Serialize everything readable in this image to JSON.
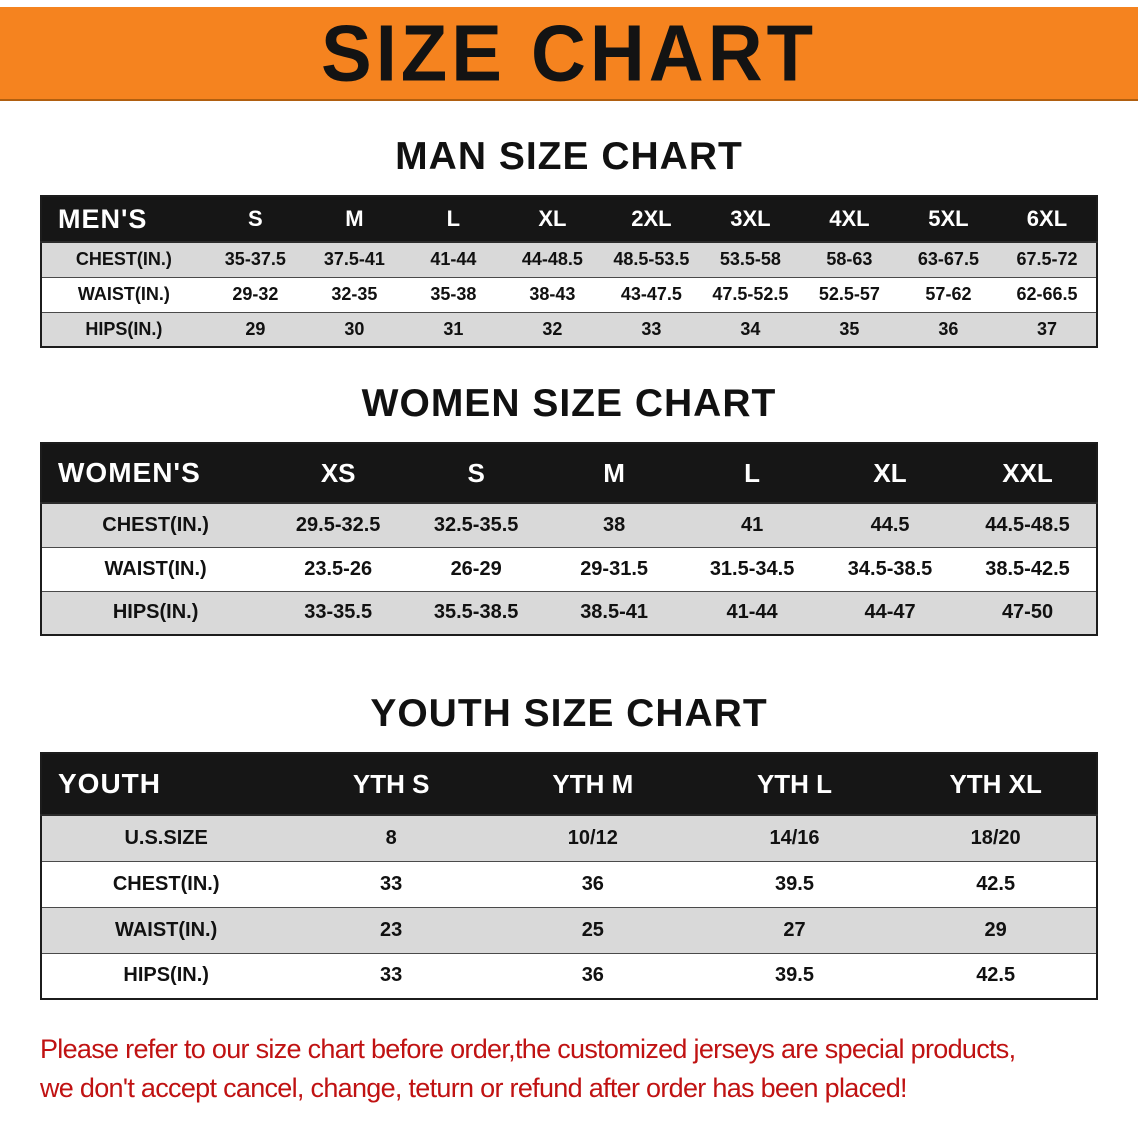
{
  "theme": {
    "banner_bg": "#f5831f",
    "table_header_bg": "#161616",
    "row_stripe": "#d9d9d9",
    "disclaimer_color": "#c01212"
  },
  "banner": {
    "title": "SIZE CHART"
  },
  "sections": [
    {
      "title": "MAN SIZE CHART",
      "table": {
        "corner": "MEN'S",
        "columns": [
          "S",
          "M",
          "L",
          "XL",
          "2XL",
          "3XL",
          "4XL",
          "5XL",
          "6XL"
        ],
        "rows": [
          {
            "label": "CHEST(IN.)",
            "values": [
              "35-37.5",
              "37.5-41",
              "41-44",
              "44-48.5",
              "48.5-53.5",
              "53.5-58",
              "58-63",
              "63-67.5",
              "67.5-72"
            ]
          },
          {
            "label": "WAIST(IN.)",
            "values": [
              "29-32",
              "32-35",
              "35-38",
              "38-43",
              "43-47.5",
              "47.5-52.5",
              "52.5-57",
              "57-62",
              "62-66.5"
            ]
          },
          {
            "label": "HIPS(IN.)",
            "values": [
              "29",
              "30",
              "31",
              "32",
              "33",
              "34",
              "35",
              "36",
              "37"
            ]
          }
        ]
      }
    },
    {
      "title": "WOMEN SIZE CHART",
      "table": {
        "corner": "WOMEN'S",
        "columns": [
          "XS",
          "S",
          "M",
          "L",
          "XL",
          "XXL"
        ],
        "rows": [
          {
            "label": "CHEST(IN.)",
            "values": [
              "29.5-32.5",
              "32.5-35.5",
              "38",
              "41",
              "44.5",
              "44.5-48.5"
            ]
          },
          {
            "label": "WAIST(IN.)",
            "values": [
              "23.5-26",
              "26-29",
              "29-31.5",
              "31.5-34.5",
              "34.5-38.5",
              "38.5-42.5"
            ]
          },
          {
            "label": "HIPS(IN.)",
            "values": [
              "33-35.5",
              "35.5-38.5",
              "38.5-41",
              "41-44",
              "44-47",
              "47-50"
            ]
          }
        ]
      }
    },
    {
      "title": "YOUTH SIZE CHART",
      "table": {
        "corner": "YOUTH",
        "columns": [
          "YTH S",
          "YTH M",
          "YTH L",
          "YTH XL"
        ],
        "rows": [
          {
            "label": "U.S.SIZE",
            "values": [
              "8",
              "10/12",
              "14/16",
              "18/20"
            ]
          },
          {
            "label": "CHEST(IN.)",
            "values": [
              "33",
              "36",
              "39.5",
              "42.5"
            ]
          },
          {
            "label": "WAIST(IN.)",
            "values": [
              "23",
              "25",
              "27",
              "29"
            ]
          },
          {
            "label": "HIPS(IN.)",
            "values": [
              "33",
              "36",
              "39.5",
              "42.5"
            ]
          }
        ]
      }
    }
  ],
  "disclaimer": {
    "line1": "Please refer to our size chart before order,the customized jerseys are special products,",
    "line2": "we don't accept cancel, change, teturn or refund after order has been placed!"
  }
}
